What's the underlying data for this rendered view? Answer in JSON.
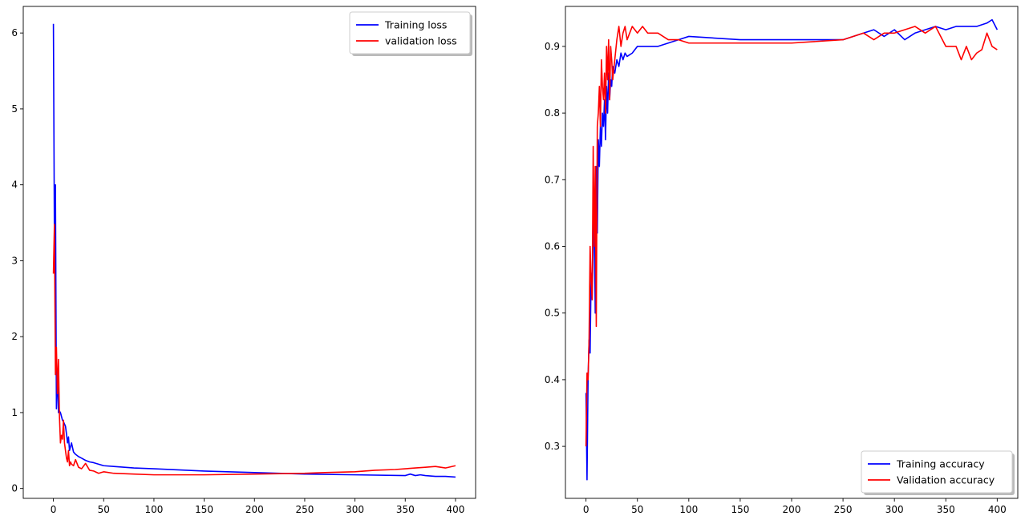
{
  "chart_data": [
    {
      "type": "line",
      "title": "",
      "xlabel": "",
      "ylabel": "",
      "xlim": [
        -30,
        420
      ],
      "ylim": [
        -0.13,
        6.35
      ],
      "xticks": [
        0,
        50,
        100,
        150,
        200,
        250,
        300,
        350,
        400
      ],
      "yticks": [
        0,
        1,
        2,
        3,
        4,
        5,
        6
      ],
      "grid": false,
      "legend_position": "top-right",
      "series": [
        {
          "name": "Training loss",
          "color": "#0000ff",
          "x": [
            0,
            1,
            2,
            3,
            4,
            5,
            6,
            7,
            8,
            9,
            10,
            11,
            12,
            13,
            14,
            15,
            16,
            17,
            18,
            20,
            22,
            25,
            28,
            32,
            36,
            40,
            45,
            50,
            60,
            80,
            100,
            150,
            200,
            250,
            300,
            350,
            355,
            360,
            365,
            370,
            380,
            390,
            400
          ],
          "y": [
            6.12,
            3.3,
            4.0,
            1.05,
            1.55,
            1.0,
            1.02,
            1.0,
            0.95,
            0.9,
            0.88,
            0.85,
            0.82,
            0.72,
            0.6,
            0.68,
            0.5,
            0.55,
            0.6,
            0.48,
            0.45,
            0.42,
            0.4,
            0.37,
            0.35,
            0.34,
            0.32,
            0.3,
            0.29,
            0.27,
            0.26,
            0.23,
            0.21,
            0.19,
            0.18,
            0.17,
            0.19,
            0.17,
            0.18,
            0.17,
            0.16,
            0.16,
            0.15
          ]
        },
        {
          "name": "validation loss",
          "color": "#ff0000",
          "x": [
            0,
            1,
            2,
            3,
            4,
            5,
            6,
            7,
            8,
            9,
            10,
            11,
            12,
            13,
            14,
            15,
            16,
            17,
            18,
            20,
            22,
            25,
            28,
            32,
            36,
            40,
            45,
            50,
            60,
            80,
            100,
            150,
            200,
            250,
            270,
            300,
            320,
            340,
            350,
            360,
            370,
            380,
            390,
            400
          ],
          "y": [
            2.83,
            3.48,
            1.5,
            1.86,
            1.25,
            1.7,
            0.95,
            0.6,
            0.7,
            0.65,
            0.9,
            0.6,
            0.5,
            0.4,
            0.35,
            0.5,
            0.3,
            0.35,
            0.32,
            0.3,
            0.38,
            0.28,
            0.26,
            0.33,
            0.24,
            0.23,
            0.2,
            0.22,
            0.2,
            0.19,
            0.18,
            0.18,
            0.19,
            0.2,
            0.21,
            0.22,
            0.24,
            0.25,
            0.26,
            0.27,
            0.28,
            0.29,
            0.27,
            0.3
          ]
        }
      ]
    },
    {
      "type": "line",
      "title": "",
      "xlabel": "",
      "ylabel": "",
      "xlim": [
        -20,
        420
      ],
      "ylim": [
        0.222,
        0.96
      ],
      "xticks": [
        0,
        50,
        100,
        150,
        200,
        250,
        300,
        350,
        400
      ],
      "yticks": [
        0.3,
        0.4,
        0.5,
        0.6,
        0.7,
        0.8,
        0.9
      ],
      "grid": false,
      "legend_position": "bottom-right",
      "series": [
        {
          "name": "Training accuracy",
          "color": "#0000ff",
          "x": [
            0,
            1,
            2,
            3,
            4,
            5,
            6,
            7,
            8,
            9,
            10,
            11,
            12,
            13,
            14,
            15,
            16,
            17,
            18,
            19,
            20,
            21,
            22,
            23,
            24,
            25,
            26,
            28,
            30,
            32,
            34,
            36,
            38,
            40,
            45,
            50,
            55,
            60,
            70,
            80,
            90,
            100,
            150,
            200,
            250,
            270,
            280,
            290,
            300,
            310,
            320,
            330,
            340,
            350,
            360,
            370,
            380,
            390,
            395,
            400
          ],
          "y": [
            0.38,
            0.25,
            0.4,
            0.46,
            0.44,
            0.56,
            0.52,
            0.6,
            0.66,
            0.5,
            0.72,
            0.62,
            0.76,
            0.72,
            0.78,
            0.75,
            0.8,
            0.78,
            0.82,
            0.76,
            0.84,
            0.8,
            0.86,
            0.82,
            0.85,
            0.84,
            0.87,
            0.86,
            0.88,
            0.87,
            0.89,
            0.88,
            0.89,
            0.885,
            0.89,
            0.9,
            0.9,
            0.9,
            0.9,
            0.905,
            0.91,
            0.915,
            0.91,
            0.91,
            0.91,
            0.92,
            0.925,
            0.915,
            0.925,
            0.91,
            0.92,
            0.925,
            0.93,
            0.925,
            0.93,
            0.93,
            0.93,
            0.935,
            0.94,
            0.925
          ]
        },
        {
          "name": "Validation accuracy",
          "color": "#ff0000",
          "x": [
            0,
            1,
            2,
            3,
            4,
            5,
            6,
            7,
            8,
            9,
            10,
            11,
            12,
            13,
            14,
            15,
            16,
            17,
            18,
            19,
            20,
            21,
            22,
            23,
            24,
            25,
            26,
            28,
            30,
            32,
            34,
            36,
            38,
            40,
            45,
            50,
            55,
            60,
            70,
            80,
            90,
            100,
            150,
            200,
            250,
            270,
            280,
            290,
            300,
            310,
            320,
            330,
            340,
            350,
            360,
            365,
            370,
            375,
            380,
            385,
            390,
            395,
            400
          ],
          "y": [
            0.3,
            0.41,
            0.4,
            0.46,
            0.6,
            0.55,
            0.52,
            0.75,
            0.6,
            0.72,
            0.48,
            0.78,
            0.8,
            0.84,
            0.78,
            0.88,
            0.84,
            0.82,
            0.86,
            0.8,
            0.9,
            0.85,
            0.91,
            0.82,
            0.9,
            0.88,
            0.85,
            0.88,
            0.91,
            0.93,
            0.9,
            0.92,
            0.93,
            0.91,
            0.93,
            0.92,
            0.93,
            0.92,
            0.92,
            0.91,
            0.91,
            0.905,
            0.905,
            0.905,
            0.91,
            0.92,
            0.91,
            0.92,
            0.92,
            0.925,
            0.93,
            0.92,
            0.93,
            0.9,
            0.9,
            0.88,
            0.9,
            0.88,
            0.89,
            0.895,
            0.92,
            0.9,
            0.895
          ]
        }
      ]
    }
  ]
}
